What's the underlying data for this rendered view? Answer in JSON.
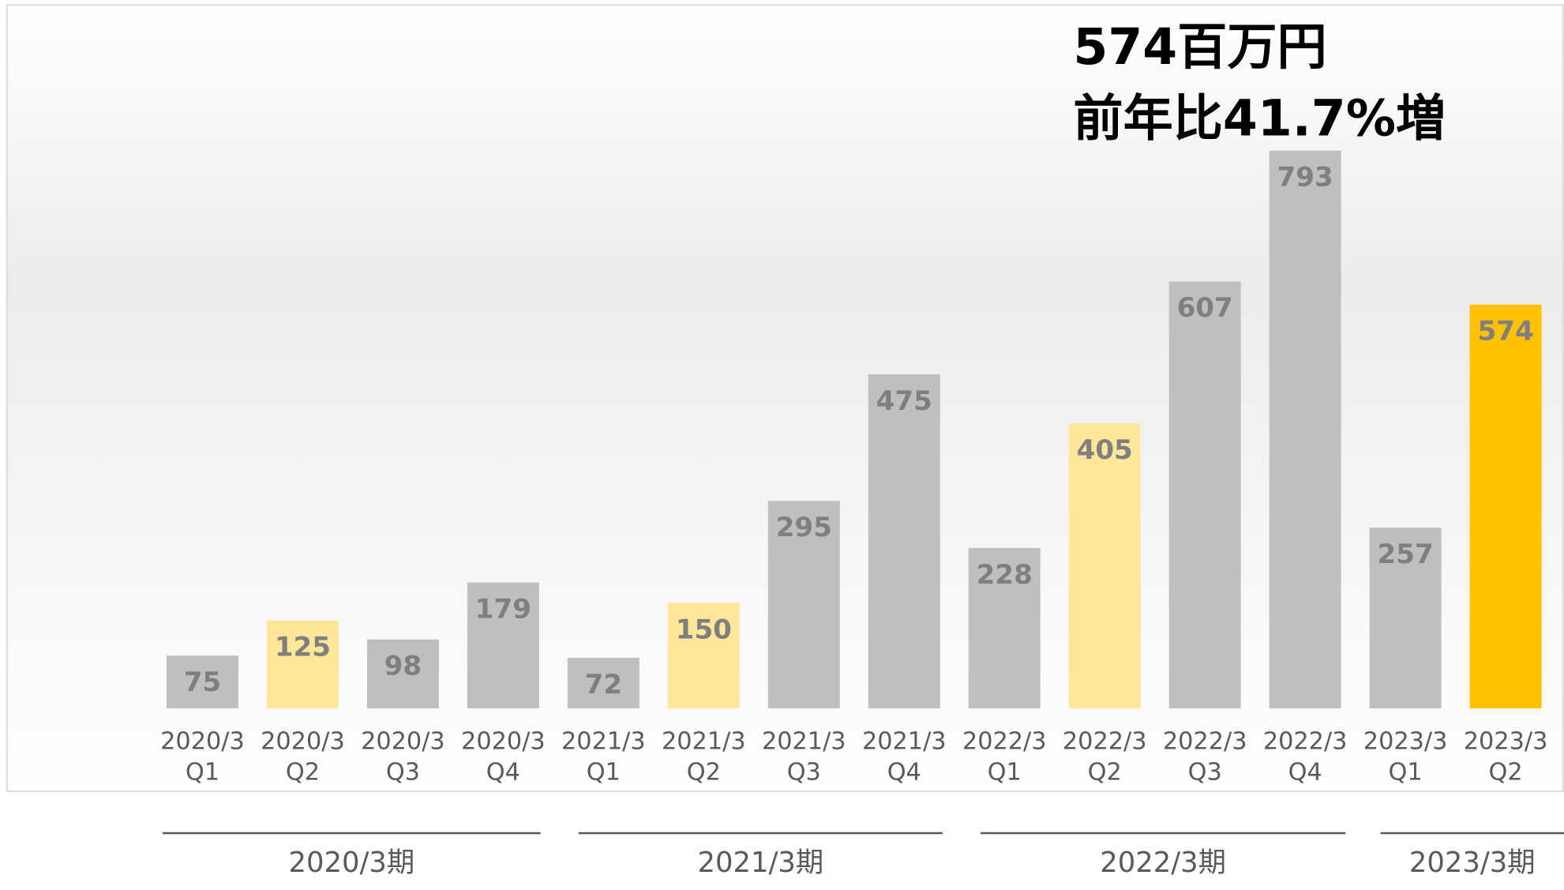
{
  "chart_data": {
    "type": "bar",
    "annotations": [
      "574百万円",
      "前年比41.7%増"
    ],
    "categories": [
      [
        "2020/3",
        "Q1"
      ],
      [
        "2020/3",
        "Q2"
      ],
      [
        "2020/3",
        "Q3"
      ],
      [
        "2020/3",
        "Q4"
      ],
      [
        "2021/3",
        "Q1"
      ],
      [
        "2021/3",
        "Q2"
      ],
      [
        "2021/3",
        "Q3"
      ],
      [
        "2021/3",
        "Q4"
      ],
      [
        "2022/3",
        "Q1"
      ],
      [
        "2022/3",
        "Q2"
      ],
      [
        "2022/3",
        "Q3"
      ],
      [
        "2022/3",
        "Q4"
      ],
      [
        "2023/3",
        "Q1"
      ],
      [
        "2023/3",
        "Q2"
      ]
    ],
    "values": [
      75,
      125,
      98,
      179,
      72,
      150,
      295,
      475,
      228,
      405,
      607,
      793,
      257,
      574
    ],
    "colors": [
      "#bfbfbf",
      "#ffe699",
      "#bfbfbf",
      "#bfbfbf",
      "#bfbfbf",
      "#ffe699",
      "#bfbfbf",
      "#bfbfbf",
      "#bfbfbf",
      "#ffe699",
      "#bfbfbf",
      "#bfbfbf",
      "#bfbfbf",
      "#ffc000"
    ],
    "ylim": [
      0,
      1000
    ],
    "groups": [
      "2020/3期",
      "2021/3期",
      "2022/3期",
      "2023/3期"
    ]
  }
}
